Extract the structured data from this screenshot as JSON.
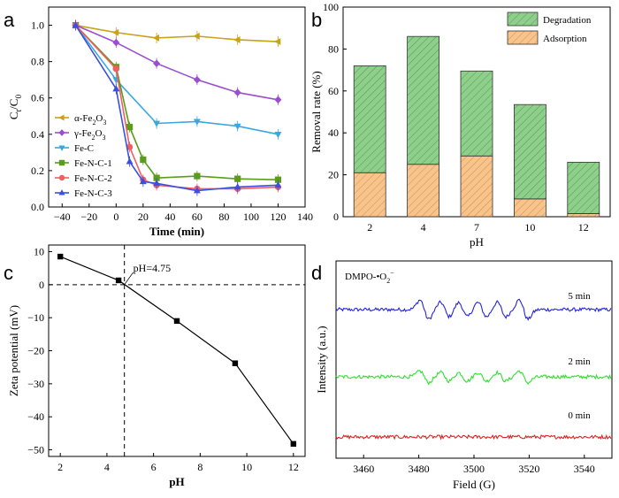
{
  "figure": {
    "panels": [
      {
        "label": "a",
        "xlabel": "Time (min)",
        "ylabel": "Ct/C0"
      },
      {
        "label": "b",
        "xlabel": "pH",
        "ylabel": "Removal rate (%)"
      },
      {
        "label": "c",
        "xlabel": "pH",
        "ylabel": "Zeta potential (mV)"
      },
      {
        "label": "d",
        "xlabel": "Field (G)",
        "ylabel": "Intensity (a.u.)"
      }
    ]
  },
  "chart_data": [
    {
      "type": "line",
      "panel": "a",
      "xlabel": "Time (min)",
      "ylabel": "Ct/C0",
      "xlim": [
        -50,
        140
      ],
      "ylim": [
        0.0,
        1.1
      ],
      "xticks": [
        -40,
        -20,
        0,
        20,
        40,
        60,
        80,
        100,
        120,
        140
      ],
      "yticks": [
        0.0,
        0.2,
        0.4,
        0.6,
        0.8,
        1.0
      ],
      "legend_position": "lower-left",
      "series": [
        {
          "name": "α-Fe2O3",
          "color": "#c8a217",
          "marker": "triangle-left",
          "x": [
            -30,
            0,
            30,
            60,
            90,
            120
          ],
          "y": [
            1.0,
            0.96,
            0.93,
            0.94,
            0.92,
            0.91
          ]
        },
        {
          "name": "γ-Fe2O3",
          "color": "#9b4ed0",
          "marker": "diamond",
          "x": [
            -30,
            0,
            30,
            60,
            90,
            120
          ],
          "y": [
            1.0,
            0.905,
            0.79,
            0.7,
            0.63,
            0.59
          ]
        },
        {
          "name": "Fe-C",
          "color": "#3aa8e0",
          "marker": "triangle-down",
          "x": [
            -30,
            0,
            30,
            60,
            90,
            120
          ],
          "y": [
            1.0,
            0.7,
            0.46,
            0.47,
            0.445,
            0.4
          ]
        },
        {
          "name": "Fe-N-C-1",
          "color": "#5a9c1c",
          "marker": "square",
          "x": [
            -30,
            0,
            10,
            20,
            30,
            60,
            90,
            120
          ],
          "y": [
            1.0,
            0.77,
            0.44,
            0.26,
            0.16,
            0.17,
            0.155,
            0.15
          ]
        },
        {
          "name": "Fe-N-C-2",
          "color": "#f06060",
          "marker": "circle",
          "x": [
            -30,
            0,
            10,
            20,
            30,
            60,
            90,
            120
          ],
          "y": [
            1.0,
            0.76,
            0.33,
            0.15,
            0.12,
            0.1,
            0.1,
            0.11
          ]
        },
        {
          "name": "Fe-N-C-3",
          "color": "#3b4fe0",
          "marker": "triangle-up",
          "x": [
            -30,
            0,
            10,
            20,
            30,
            60,
            90,
            120
          ],
          "y": [
            1.0,
            0.65,
            0.25,
            0.14,
            0.13,
            0.09,
            0.11,
            0.12
          ]
        }
      ]
    },
    {
      "type": "bar",
      "panel": "b",
      "stacked": true,
      "categories": [
        "2",
        "4",
        "7",
        "10",
        "12"
      ],
      "xlabel": "pH",
      "ylabel": "Removal rate (%)",
      "ylim": [
        0,
        100
      ],
      "yticks": [
        0,
        20,
        40,
        60,
        80,
        100
      ],
      "legend_position": "top-right",
      "series": [
        {
          "name": "Adsorption",
          "color": "#f7c48d",
          "values": [
            21,
            25,
            29,
            8.5,
            1.5
          ]
        },
        {
          "name": "Degradation",
          "color": "#8fcf8c",
          "values": [
            51,
            61,
            40.5,
            45,
            24.5
          ]
        }
      ]
    },
    {
      "type": "line",
      "panel": "c",
      "xlabel": "pH",
      "ylabel": "Zeta potential (mV)",
      "xlim": [
        1.5,
        12.5
      ],
      "ylim": [
        -52,
        12
      ],
      "xticks": [
        2,
        4,
        6,
        8,
        10,
        12
      ],
      "yticks": [
        10,
        0,
        -10,
        -20,
        -30,
        -40,
        -50
      ],
      "annotation": "pH=4.75",
      "isoelectric_x": 4.75,
      "series": [
        {
          "color": "#000000",
          "marker": "square",
          "x": [
            2,
            4.5,
            7,
            9.5,
            12
          ],
          "y": [
            8.5,
            1.3,
            -11,
            -23.8,
            -48.2
          ]
        }
      ]
    },
    {
      "type": "line",
      "panel": "d",
      "xlabel": "Field (G)",
      "ylabel": "Intensity (a.u.)",
      "xlim": [
        3450,
        3550
      ],
      "xticks": [
        3460,
        3480,
        3500,
        3520,
        3540
      ],
      "title": "DMPO-•O2-",
      "series": [
        {
          "name": "5 min",
          "color": "#2424d8",
          "amplitude": 1.0
        },
        {
          "name": "2 min",
          "color": "#2ee02e",
          "amplitude": 0.6
        },
        {
          "name": "0 min",
          "color": "#e02020",
          "amplitude": 0.0
        }
      ]
    }
  ]
}
